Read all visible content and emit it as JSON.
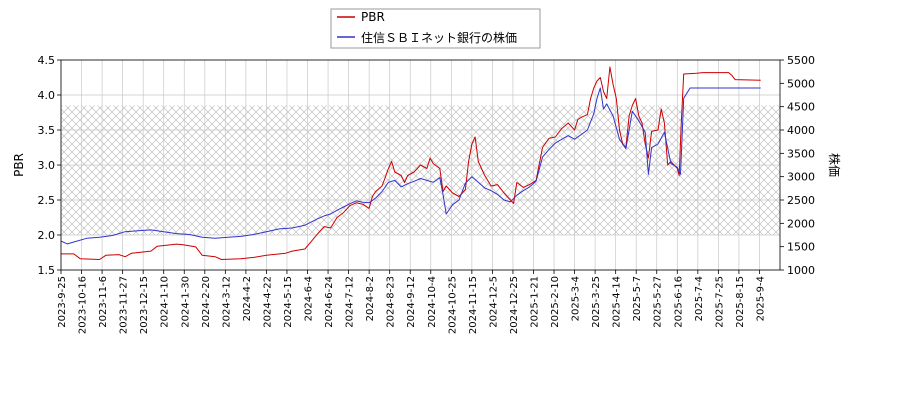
{
  "chart_data": {
    "type": "line",
    "legend": {
      "placement": "top-center",
      "entries": [
        {
          "label": "PBR",
          "color": "#cc0000"
        },
        {
          "label": "住信ＳＢＩネット銀行の株価",
          "color": "#3333cc"
        }
      ]
    },
    "ylabel_left": "PBR",
    "ylabel_right": "株価",
    "ylim_left": [
      1.5,
      4.5
    ],
    "ylim_right": [
      1000,
      5500
    ],
    "yticks_left": [
      "1.5",
      "2.0",
      "2.5",
      "3.0",
      "3.5",
      "4.0",
      "4.5"
    ],
    "yticks_right": [
      "1000",
      "1500",
      "2000",
      "2500",
      "3000",
      "3500",
      "4000",
      "4500",
      "5000",
      "5500"
    ],
    "xticks": [
      "2023-9-25",
      "2023-10-16",
      "2023-11-6",
      "2023-11-27",
      "2023-12-15",
      "2024-1-10",
      "2024-1-30",
      "2024-2-20",
      "2024-3-12",
      "2024-4-2",
      "2024-4-22",
      "2024-5-15",
      "2024-6-4",
      "2024-6-24",
      "2024-7-12",
      "2024-8-2",
      "2024-8-23",
      "2024-9-12",
      "2024-10-4",
      "2024-10-25",
      "2024-11-15",
      "2024-12-5",
      "2024-12-25",
      "2025-1-21",
      "2025-2-10",
      "2025-3-4",
      "2025-3-25",
      "2025-4-14",
      "2025-5-7",
      "2025-5-27",
      "2025-6-16",
      "2025-7-4",
      "2025-7-25",
      "2025-8-15",
      "2025-9-4"
    ],
    "hatched_band_pbr": [
      2.0,
      3.85
    ],
    "grid": true,
    "series": [
      {
        "name": "PBR",
        "axis": "left",
        "color": "#cc0000",
        "points": [
          [
            0,
            1.73
          ],
          [
            2,
            1.73
          ],
          [
            3,
            1.66
          ],
          [
            6,
            1.65
          ],
          [
            7,
            1.71
          ],
          [
            9,
            1.72
          ],
          [
            10,
            1.69
          ],
          [
            11,
            1.74
          ],
          [
            14,
            1.77
          ],
          [
            15,
            1.84
          ],
          [
            18,
            1.87
          ],
          [
            19,
            1.86
          ],
          [
            21,
            1.83
          ],
          [
            22,
            1.71
          ],
          [
            24,
            1.69
          ],
          [
            25,
            1.65
          ],
          [
            28,
            1.66
          ],
          [
            30,
            1.68
          ],
          [
            32,
            1.71
          ],
          [
            35,
            1.74
          ],
          [
            36,
            1.77
          ],
          [
            38,
            1.8
          ],
          [
            39,
            1.91
          ],
          [
            40,
            2.02
          ],
          [
            41,
            2.12
          ],
          [
            42,
            2.1
          ],
          [
            43,
            2.25
          ],
          [
            44,
            2.32
          ],
          [
            45,
            2.42
          ],
          [
            46,
            2.46
          ],
          [
            47,
            2.44
          ],
          [
            48,
            2.38
          ],
          [
            48.5,
            2.55
          ],
          [
            49,
            2.62
          ],
          [
            50,
            2.7
          ],
          [
            50.5,
            2.82
          ],
          [
            51,
            2.95
          ],
          [
            51.5,
            3.05
          ],
          [
            52,
            2.9
          ],
          [
            53,
            2.85
          ],
          [
            53.5,
            2.75
          ],
          [
            54,
            2.85
          ],
          [
            55,
            2.9
          ],
          [
            56,
            3.0
          ],
          [
            57,
            2.95
          ],
          [
            57.5,
            3.1
          ],
          [
            58,
            3.02
          ],
          [
            59,
            2.95
          ],
          [
            59.5,
            2.62
          ],
          [
            60,
            2.7
          ],
          [
            61,
            2.6
          ],
          [
            62,
            2.55
          ],
          [
            63,
            2.65
          ],
          [
            63.5,
            3.05
          ],
          [
            64,
            3.3
          ],
          [
            64.5,
            3.4
          ],
          [
            65,
            3.05
          ],
          [
            66,
            2.85
          ],
          [
            67,
            2.7
          ],
          [
            68,
            2.72
          ],
          [
            69,
            2.6
          ],
          [
            70,
            2.5
          ],
          [
            70.5,
            2.45
          ],
          [
            71,
            2.75
          ],
          [
            72,
            2.68
          ],
          [
            73,
            2.72
          ],
          [
            74,
            2.78
          ],
          [
            75,
            3.25
          ],
          [
            76,
            3.38
          ],
          [
            77,
            3.4
          ],
          [
            78,
            3.52
          ],
          [
            79,
            3.6
          ],
          [
            80,
            3.5
          ],
          [
            80.5,
            3.65
          ],
          [
            81,
            3.68
          ],
          [
            82,
            3.72
          ],
          [
            82.5,
            3.95
          ],
          [
            83,
            4.1
          ],
          [
            83.5,
            4.2
          ],
          [
            84,
            4.25
          ],
          [
            84.5,
            4.05
          ],
          [
            85,
            3.95
          ],
          [
            85.5,
            4.4
          ],
          [
            86,
            4.15
          ],
          [
            86.5,
            3.95
          ],
          [
            87,
            3.5
          ],
          [
            87.5,
            3.3
          ],
          [
            88,
            3.25
          ],
          [
            88.5,
            3.7
          ],
          [
            89,
            3.85
          ],
          [
            89.5,
            3.95
          ],
          [
            90,
            3.7
          ],
          [
            90.5,
            3.6
          ],
          [
            91,
            3.3
          ],
          [
            91.5,
            3.1
          ],
          [
            92,
            3.48
          ],
          [
            93,
            3.5
          ],
          [
            93.5,
            3.8
          ],
          [
            94,
            3.6
          ],
          [
            94.5,
            3.0
          ],
          [
            95,
            3.05
          ],
          [
            96,
            2.95
          ],
          [
            96.3,
            2.85
          ],
          [
            96.6,
            3.55
          ],
          [
            97,
            4.3
          ],
          [
            99,
            4.31
          ],
          [
            100,
            4.32
          ],
          [
            104,
            4.32
          ],
          [
            104.5,
            4.28
          ],
          [
            105,
            4.22
          ],
          [
            109,
            4.21
          ]
        ]
      },
      {
        "name": "住信ＳＢＩネット銀行の株価",
        "axis": "right",
        "color": "#3333cc",
        "points": [
          [
            0,
            1620
          ],
          [
            1,
            1560
          ],
          [
            2,
            1600
          ],
          [
            4,
            1680
          ],
          [
            6,
            1700
          ],
          [
            8,
            1740
          ],
          [
            10,
            1820
          ],
          [
            12,
            1840
          ],
          [
            14,
            1860
          ],
          [
            16,
            1820
          ],
          [
            18,
            1780
          ],
          [
            20,
            1760
          ],
          [
            22,
            1700
          ],
          [
            24,
            1680
          ],
          [
            26,
            1700
          ],
          [
            28,
            1720
          ],
          [
            30,
            1760
          ],
          [
            32,
            1820
          ],
          [
            34,
            1880
          ],
          [
            36,
            1900
          ],
          [
            38,
            1960
          ],
          [
            40,
            2100
          ],
          [
            41,
            2160
          ],
          [
            42,
            2200
          ],
          [
            43,
            2280
          ],
          [
            44,
            2350
          ],
          [
            45,
            2420
          ],
          [
            46,
            2480
          ],
          [
            47,
            2450
          ],
          [
            48,
            2440
          ],
          [
            49,
            2540
          ],
          [
            50,
            2680
          ],
          [
            51,
            2880
          ],
          [
            52,
            2920
          ],
          [
            53,
            2780
          ],
          [
            54,
            2850
          ],
          [
            55,
            2900
          ],
          [
            56,
            2960
          ],
          [
            57,
            2920
          ],
          [
            58,
            2880
          ],
          [
            59,
            2980
          ],
          [
            59.5,
            2620
          ],
          [
            60,
            2200
          ],
          [
            61,
            2400
          ],
          [
            62,
            2500
          ],
          [
            63,
            2860
          ],
          [
            64,
            3000
          ],
          [
            65,
            2880
          ],
          [
            66,
            2760
          ],
          [
            67,
            2700
          ],
          [
            68,
            2620
          ],
          [
            69,
            2500
          ],
          [
            70,
            2460
          ],
          [
            71,
            2600
          ],
          [
            72,
            2700
          ],
          [
            73,
            2780
          ],
          [
            74,
            2900
          ],
          [
            75,
            3420
          ],
          [
            76,
            3580
          ],
          [
            77,
            3720
          ],
          [
            78,
            3800
          ],
          [
            79,
            3880
          ],
          [
            80,
            3800
          ],
          [
            81,
            3900
          ],
          [
            82,
            4000
          ],
          [
            83,
            4350
          ],
          [
            83.5,
            4680
          ],
          [
            84,
            4900
          ],
          [
            84.5,
            4450
          ],
          [
            85,
            4560
          ],
          [
            86,
            4300
          ],
          [
            87,
            3800
          ],
          [
            88,
            3600
          ],
          [
            89,
            4400
          ],
          [
            90,
            4200
          ],
          [
            91,
            3950
          ],
          [
            91.5,
            3050
          ],
          [
            92,
            3620
          ],
          [
            93,
            3700
          ],
          [
            94,
            3950
          ],
          [
            95,
            3280
          ],
          [
            96,
            3200
          ],
          [
            96.5,
            3050
          ],
          [
            97,
            4680
          ],
          [
            98,
            4900
          ],
          [
            100,
            4900
          ],
          [
            104,
            4900
          ],
          [
            109,
            4900
          ]
        ]
      }
    ]
  }
}
